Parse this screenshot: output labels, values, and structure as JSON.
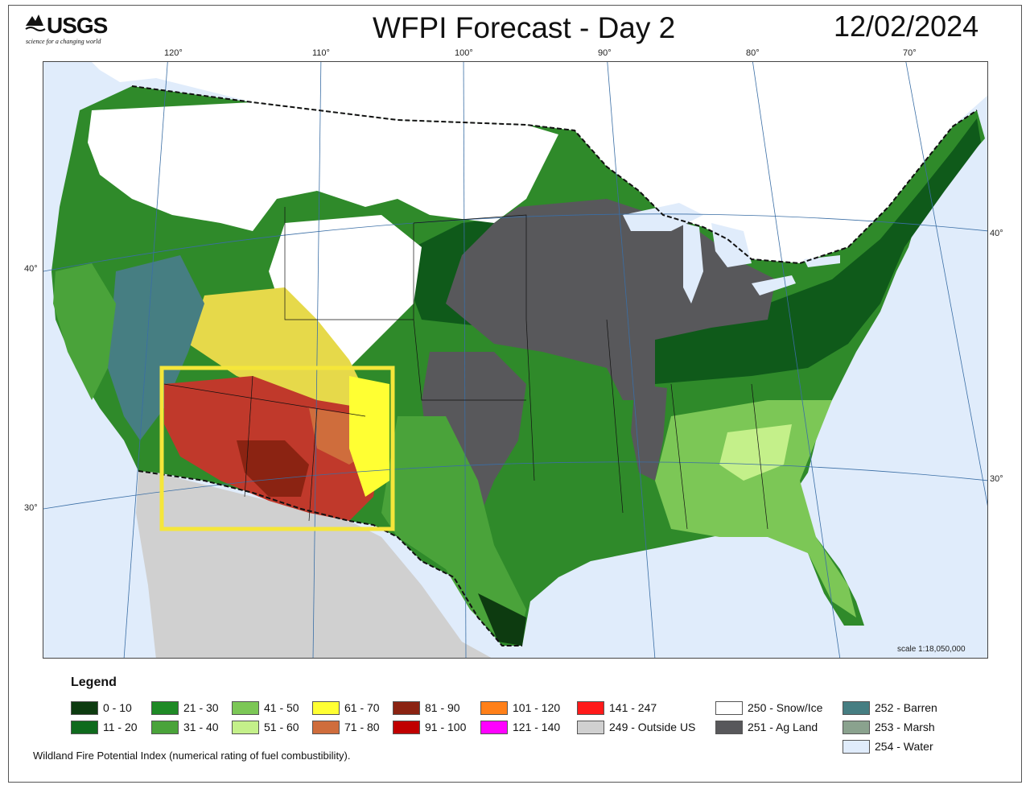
{
  "header": {
    "logo_text": "USGS",
    "logo_tagline": "science for a changing world",
    "title": "WFPI Forecast - Day 2",
    "date": "12/02/2024"
  },
  "map": {
    "longitude_labels": [
      "120°",
      "110°",
      "100°",
      "90°",
      "80°",
      "70°"
    ],
    "latitude_labels_left": [
      "40°",
      "30°"
    ],
    "latitude_labels_right": [
      "40°",
      "30°"
    ],
    "scale": "scale 1:18,050,000",
    "highlight_box_color": "#f5e63a"
  },
  "legend": {
    "title": "Legend",
    "items": [
      {
        "label": "0 - 10",
        "color": "#0d3b10"
      },
      {
        "label": "11 - 20",
        "color": "#0f6a1d"
      },
      {
        "label": "21 - 30",
        "color": "#1f8a26"
      },
      {
        "label": "31 - 40",
        "color": "#4aa33a"
      },
      {
        "label": "41 - 50",
        "color": "#7cc756"
      },
      {
        "label": "51 - 60",
        "color": "#c4f08a"
      },
      {
        "label": "61 - 70",
        "color": "#ffff33"
      },
      {
        "label": "71 - 80",
        "color": "#cf6d3c"
      },
      {
        "label": "81 - 90",
        "color": "#8b2312"
      },
      {
        "label": "91 - 100",
        "color": "#c00000"
      },
      {
        "label": "101 - 120",
        "color": "#ff8019"
      },
      {
        "label": "121 - 140",
        "color": "#ff00ff"
      },
      {
        "label": "141 - 247",
        "color": "#ff1a1a"
      },
      {
        "label": "249 - Outside US",
        "color": "#d0d0d0"
      },
      {
        "label": "250 - Snow/Ice",
        "color": "#ffffff"
      },
      {
        "label": "251 - Ag Land",
        "color": "#58585b"
      },
      {
        "label": "252 - Barren",
        "color": "#467e82"
      },
      {
        "label": "253 - Marsh",
        "color": "#8aa28e"
      },
      {
        "label": "254 - Water",
        "color": "#e0ecfb"
      }
    ]
  },
  "footnote": "Wildland Fire Potential Index (numerical rating of fuel combustibility)."
}
